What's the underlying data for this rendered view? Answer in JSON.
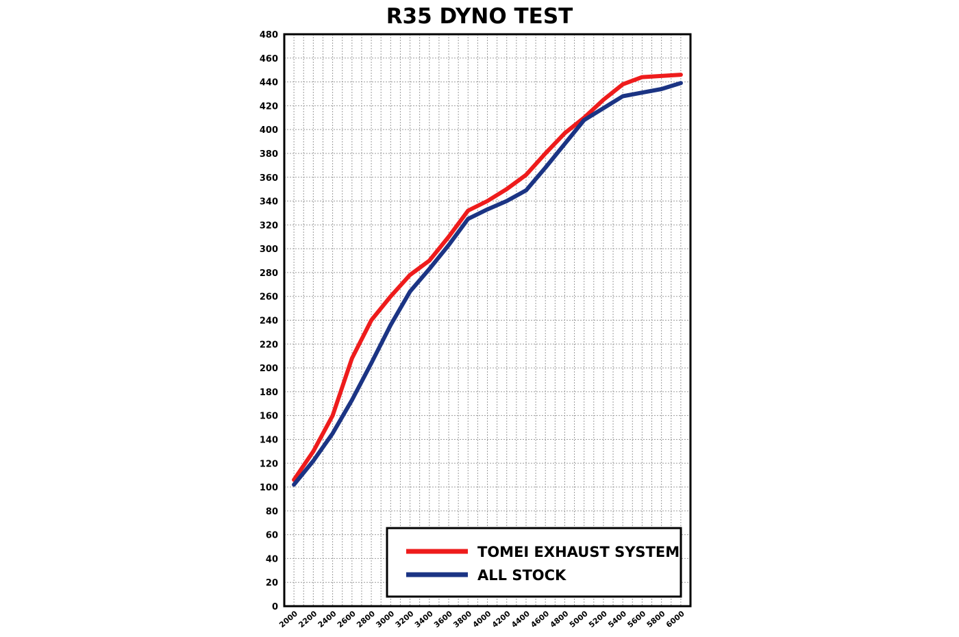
{
  "chart_data": {
    "type": "line",
    "title": "R35 DYNO TEST",
    "xlabel": "",
    "ylabel": "",
    "x": [
      2000,
      2200,
      2400,
      2600,
      2800,
      3000,
      3200,
      3400,
      3600,
      3800,
      4000,
      4200,
      4400,
      4600,
      4800,
      5000,
      5200,
      5400,
      5600,
      5800,
      6000
    ],
    "x_ticks": [
      2000,
      2200,
      2400,
      2600,
      2800,
      3000,
      3200,
      3400,
      3600,
      3800,
      4000,
      4200,
      4400,
      4600,
      4800,
      5000,
      5200,
      5400,
      5600,
      5800,
      6000
    ],
    "y_ticks": [
      0,
      20,
      40,
      60,
      80,
      100,
      120,
      140,
      160,
      180,
      200,
      220,
      240,
      260,
      280,
      300,
      320,
      340,
      360,
      380,
      400,
      420,
      440,
      460,
      480
    ],
    "xlim": [
      1900,
      6100
    ],
    "ylim": [
      0,
      480
    ],
    "grid": true,
    "legend_position": "bottom-right",
    "series": [
      {
        "name": "TOMEI EXHAUST SYSTEM",
        "color": "#ee1c1c",
        "values": [
          106,
          130,
          160,
          208,
          240,
          260,
          278,
          290,
          310,
          332,
          340,
          350,
          362,
          380,
          397,
          410,
          425,
          438,
          444,
          445,
          446
        ]
      },
      {
        "name": "ALL STOCK",
        "color": "#1b3484",
        "values": [
          102,
          122,
          145,
          173,
          204,
          236,
          264,
          283,
          303,
          325,
          333,
          340,
          349,
          368,
          388,
          408,
          418,
          428,
          431,
          434,
          439
        ]
      }
    ]
  }
}
